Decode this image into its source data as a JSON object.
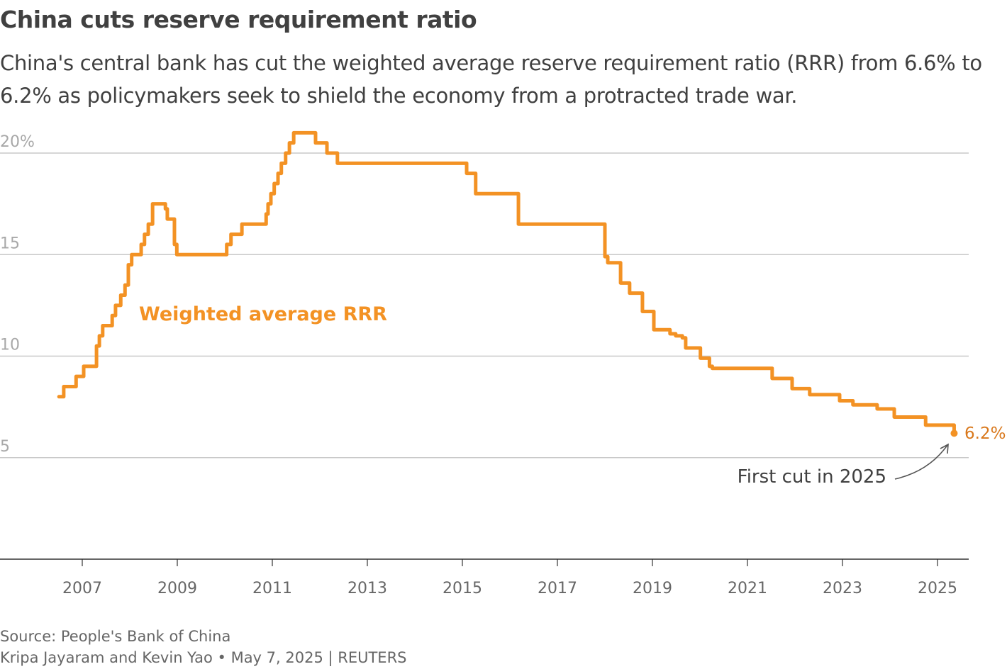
{
  "title": "China cuts reserve requirement ratio",
  "subtitle": "China's central bank has cut the weighted average reserve requirement ratio (RRR) from 6.6% to 6.2% as policymakers seek to shield the economy from a protracted trade war.",
  "source": "Source: People's Bank of China",
  "credit": "Kripa Jayaram and Kevin Yao • May 7, 2025 | REUTERS",
  "chart_data": {
    "type": "line",
    "step": true,
    "ylim": [
      0,
      20
    ],
    "xlim": [
      2006,
      2025.6
    ],
    "grid": true,
    "yticks": [
      {
        "v": 20,
        "label": "20%"
      },
      {
        "v": 15,
        "label": "15"
      },
      {
        "v": 10,
        "label": "10"
      },
      {
        "v": 5,
        "label": "5"
      }
    ],
    "xticks": [
      2007,
      2009,
      2011,
      2013,
      2015,
      2017,
      2019,
      2021,
      2023,
      2025
    ],
    "series": [
      {
        "name": "Weighted average RRR",
        "color": "#f39224",
        "points": [
          [
            2006.51,
            8.0
          ],
          [
            2006.61,
            8.5
          ],
          [
            2006.87,
            9.0
          ],
          [
            2007.03,
            9.5
          ],
          [
            2007.3,
            10.5
          ],
          [
            2007.36,
            11.0
          ],
          [
            2007.43,
            11.5
          ],
          [
            2007.63,
            12.0
          ],
          [
            2007.7,
            12.5
          ],
          [
            2007.81,
            13.0
          ],
          [
            2007.9,
            13.5
          ],
          [
            2007.97,
            14.5
          ],
          [
            2008.04,
            15.0
          ],
          [
            2008.24,
            15.5
          ],
          [
            2008.31,
            16.0
          ],
          [
            2008.39,
            16.5
          ],
          [
            2008.48,
            17.5
          ],
          [
            2008.75,
            17.25
          ],
          [
            2008.79,
            16.75
          ],
          [
            2008.94,
            15.5
          ],
          [
            2008.99,
            15.0
          ],
          [
            2010.04,
            15.5
          ],
          [
            2010.13,
            16.0
          ],
          [
            2010.36,
            16.5
          ],
          [
            2010.87,
            17.0
          ],
          [
            2010.91,
            17.5
          ],
          [
            2010.97,
            18.0
          ],
          [
            2011.04,
            18.5
          ],
          [
            2011.12,
            19.0
          ],
          [
            2011.19,
            19.5
          ],
          [
            2011.28,
            20.0
          ],
          [
            2011.36,
            20.5
          ],
          [
            2011.45,
            21.0
          ],
          [
            2011.91,
            20.5
          ],
          [
            2012.15,
            20.0
          ],
          [
            2012.37,
            19.5
          ],
          [
            2015.09,
            19.0
          ],
          [
            2015.28,
            18.0
          ],
          [
            2016.18,
            16.5
          ],
          [
            2018.0,
            14.9
          ],
          [
            2018.06,
            14.6
          ],
          [
            2018.33,
            13.6
          ],
          [
            2018.52,
            13.1
          ],
          [
            2018.79,
            12.2
          ],
          [
            2019.03,
            11.3
          ],
          [
            2019.37,
            11.1
          ],
          [
            2019.49,
            11.0
          ],
          [
            2019.63,
            10.9
          ],
          [
            2019.7,
            10.4
          ],
          [
            2020.01,
            9.9
          ],
          [
            2020.2,
            9.5
          ],
          [
            2020.26,
            9.4
          ],
          [
            2021.52,
            8.9
          ],
          [
            2021.94,
            8.4
          ],
          [
            2022.31,
            8.1
          ],
          [
            2022.94,
            7.8
          ],
          [
            2023.22,
            7.6
          ],
          [
            2023.73,
            7.4
          ],
          [
            2024.09,
            7.0
          ],
          [
            2024.75,
            6.6
          ],
          [
            2025.35,
            6.6
          ]
        ],
        "last": [
          2025.35,
          6.2
        ]
      }
    ],
    "annotations": {
      "series_label": "Weighted average RRR",
      "last_value_label": "6.2%",
      "last_value_color": "#d9781c",
      "note": "First cut in 2025"
    }
  }
}
